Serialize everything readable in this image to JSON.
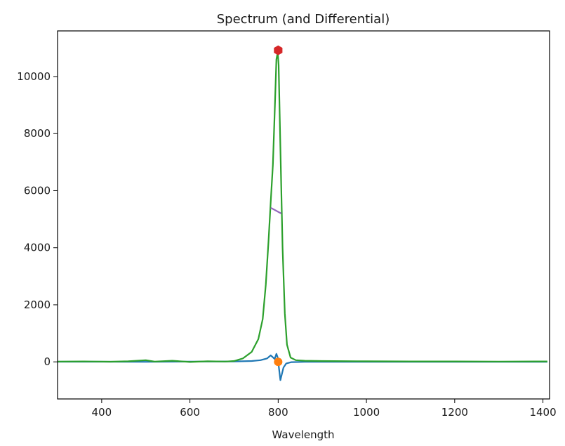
{
  "chart_data": {
    "type": "line",
    "title": "Spectrum (and Differential)",
    "xlabel": "Wavelength",
    "ylabel": "",
    "xlim": [
      300,
      1415
    ],
    "ylim": [
      -1300,
      11600
    ],
    "x_ticks": [
      400,
      600,
      800,
      1000,
      1200,
      1400
    ],
    "y_ticks": [
      0,
      2000,
      4000,
      6000,
      8000,
      10000
    ],
    "grid": false,
    "series": [
      {
        "role": "differential",
        "color": "#1f77b4",
        "points": [
          [
            300,
            5
          ],
          [
            400,
            5
          ],
          [
            500,
            0
          ],
          [
            600,
            10
          ],
          [
            700,
            15
          ],
          [
            740,
            30
          ],
          [
            760,
            60
          ],
          [
            775,
            120
          ],
          [
            783,
            230
          ],
          [
            788,
            160
          ],
          [
            792,
            100
          ],
          [
            796,
            280
          ],
          [
            799,
            150
          ],
          [
            802,
            -250
          ],
          [
            805,
            -640
          ],
          [
            808,
            -450
          ],
          [
            812,
            -200
          ],
          [
            818,
            -60
          ],
          [
            830,
            -10
          ],
          [
            860,
            0
          ],
          [
            1000,
            0
          ],
          [
            1200,
            0
          ],
          [
            1410,
            0
          ]
        ]
      },
      {
        "role": "spectrum",
        "color": "#2ca02c",
        "points": [
          [
            300,
            10
          ],
          [
            360,
            15
          ],
          [
            420,
            5
          ],
          [
            460,
            20
          ],
          [
            500,
            60
          ],
          [
            520,
            10
          ],
          [
            560,
            40
          ],
          [
            600,
            -5
          ],
          [
            640,
            20
          ],
          [
            680,
            10
          ],
          [
            700,
            30
          ],
          [
            720,
            120
          ],
          [
            740,
            350
          ],
          [
            755,
            800
          ],
          [
            765,
            1500
          ],
          [
            772,
            2700
          ],
          [
            778,
            4200
          ],
          [
            783,
            5600
          ],
          [
            788,
            6900
          ],
          [
            792,
            8700
          ],
          [
            796,
            10600
          ],
          [
            799,
            10850
          ],
          [
            801,
            10400
          ],
          [
            805,
            7500
          ],
          [
            810,
            4000
          ],
          [
            815,
            1700
          ],
          [
            820,
            600
          ],
          [
            828,
            150
          ],
          [
            840,
            60
          ],
          [
            860,
            40
          ],
          [
            900,
            30
          ],
          [
            1000,
            20
          ],
          [
            1100,
            15
          ],
          [
            1200,
            15
          ],
          [
            1300,
            10
          ],
          [
            1410,
            15
          ]
        ]
      },
      {
        "role": "half-max marker",
        "color": "#9467bd",
        "points": [
          [
            783,
            5400
          ],
          [
            807,
            5200
          ]
        ]
      }
    ],
    "markers": [
      {
        "role": "peak",
        "color": "#d62728",
        "shape": "hexagon",
        "x": 800,
        "y": 10920
      },
      {
        "role": "zero-crossing",
        "color": "#ff7f0e",
        "shape": "circle",
        "x": 800,
        "y": 0
      }
    ]
  }
}
